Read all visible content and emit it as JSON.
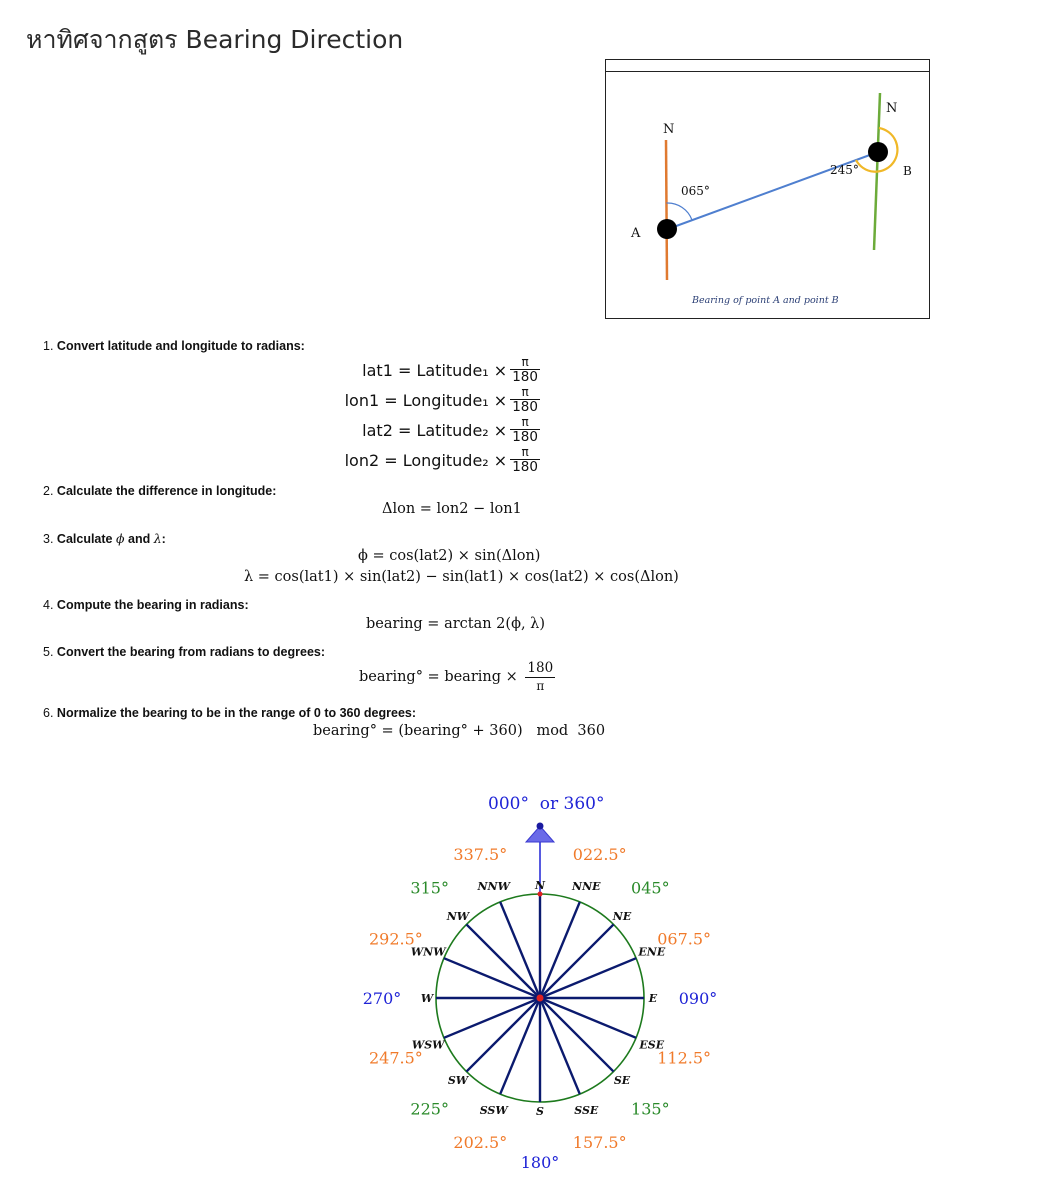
{
  "page": {
    "title": "หาทิศจากสูตร Bearing Direction"
  },
  "figure": {
    "label_n_left": "N",
    "label_n_right": "N",
    "label_a": "A",
    "label_b": "B",
    "angle_a": "065°",
    "angle_b": "245°",
    "caption": "Bearing of point A and point B",
    "colors": {
      "line_ab": "#4f7fcf",
      "north_a": "#e07a30",
      "north_b": "#6cab3a",
      "arc_b": "#f0b828"
    }
  },
  "steps": [
    {
      "num": "1.",
      "text": "Convert latitude and longitude to radians:"
    },
    {
      "num": "2.",
      "text": "Calculate the difference in longitude:"
    },
    {
      "num": "3.",
      "text": "Calculate",
      "sym1": "ϕ",
      "mid": " and ",
      "sym2": "λ",
      "tail": ":"
    },
    {
      "num": "4.",
      "text": "Compute the bearing in radians:"
    },
    {
      "num": "5.",
      "text": "Convert the bearing from radians to degrees:"
    },
    {
      "num": "6.",
      "text": "Normalize the bearing to be in the range of 0 to 360 degrees:"
    }
  ],
  "formulas": {
    "lat1": "lat1 = Latitude₁ ×",
    "lon1": "lon1 = Longitude₁ ×",
    "lat2": "lat2 = Latitude₂ ×",
    "lon2": "lon2 = Longitude₂ ×",
    "pi": "π",
    "d180": "180",
    "n180": "180",
    "dlon": "Δlon = lon2 − lon1",
    "phi": "ϕ = cos(lat2) × sin(Δlon)",
    "lambda": "λ = cos(lat1) × sin(lat2) − sin(lat1) × cos(lat2) × cos(Δlon)",
    "bearing_rad": "bearing = arctan 2(ϕ, λ)",
    "bearing_deg": "bearing° = bearing ×",
    "normalize": "bearing° = (bearing° + 360)   mod  360"
  },
  "compass": {
    "top_label": "000°  or 360°",
    "colors": {
      "blue": "#1f23d6",
      "orange": "#f07a2a",
      "green": "#2a8a2a",
      "ring": "#1d7a1d",
      "spoke": "#0b1a6e",
      "center": "#e02020"
    },
    "points": [
      {
        "abbr": "N",
        "deg": "",
        "angle": 0
      },
      {
        "abbr": "NNE",
        "deg": "022.5°",
        "angle": 22.5
      },
      {
        "abbr": "NE",
        "deg": "045°",
        "angle": 45
      },
      {
        "abbr": "ENE",
        "deg": "067.5°",
        "angle": 67.5
      },
      {
        "abbr": "E",
        "deg": "090°",
        "angle": 90
      },
      {
        "abbr": "ESE",
        "deg": "112.5°",
        "angle": 112.5
      },
      {
        "abbr": "SE",
        "deg": "135°",
        "angle": 135
      },
      {
        "abbr": "SSE",
        "deg": "157.5°",
        "angle": 157.5
      },
      {
        "abbr": "S",
        "deg": "180°",
        "angle": 180
      },
      {
        "abbr": "SSW",
        "deg": "202.5°",
        "angle": 202.5
      },
      {
        "abbr": "SW",
        "deg": "225°",
        "angle": 225
      },
      {
        "abbr": "WSW",
        "deg": "247.5°",
        "angle": 247.5
      },
      {
        "abbr": "W",
        "deg": "270°",
        "angle": 270
      },
      {
        "abbr": "WNW",
        "deg": "292.5°",
        "angle": 292.5
      },
      {
        "abbr": "NW",
        "deg": "315°",
        "angle": 315
      },
      {
        "abbr": "NNW",
        "deg": "337.5°",
        "angle": 337.5
      }
    ]
  }
}
